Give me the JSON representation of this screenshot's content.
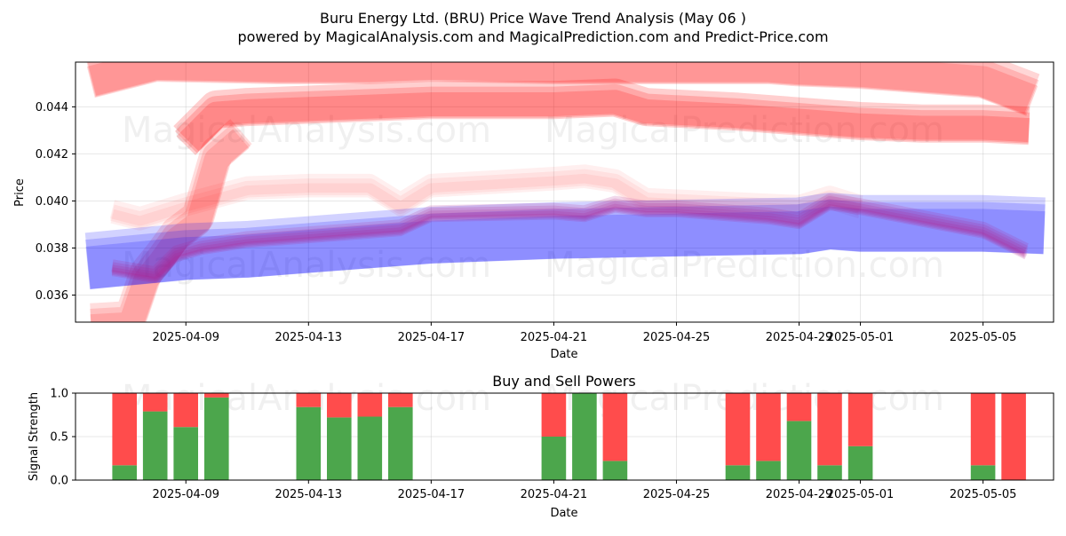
{
  "figure": {
    "title_line1": "Buru Energy Ltd. (BRU) Price Wave Trend Analysis (May 06 )",
    "title_line2": "powered by MagicalAnalysis.com and MagicalPrediction.com and Predict-Price.com"
  },
  "watermarks": {
    "left": "MagicalAnalysis.com",
    "right": "MagicalPrediction.com"
  },
  "colors": {
    "red_band": "#ff0000",
    "blue_band": "#0000ff",
    "buy": "#4ca64c",
    "sell": "#ff4c4c",
    "wave": "#b0208f"
  },
  "chart_data": [
    {
      "type": "area",
      "title": "",
      "xlabel": "Date",
      "ylabel": "Price",
      "xlim_days": [
        -3.6,
        28.3
      ],
      "ylim": [
        0.03485,
        0.0459
      ],
      "x_ticks": [
        {
          "day": 0,
          "label": "2025-04-09"
        },
        {
          "day": 4,
          "label": "2025-04-13"
        },
        {
          "day": 8,
          "label": "2025-04-17"
        },
        {
          "day": 12,
          "label": "2025-04-21"
        },
        {
          "day": 16,
          "label": "2025-04-25"
        },
        {
          "day": 20,
          "label": "2025-04-29"
        },
        {
          "day": 22,
          "label": "2025-05-01"
        },
        {
          "day": 26,
          "label": "2025-05-05"
        }
      ],
      "y_ticks": [
        {
          "value": 0.036,
          "label": "0.036"
        },
        {
          "value": 0.038,
          "label": "0.038"
        },
        {
          "value": 0.04,
          "label": "0.040"
        },
        {
          "value": 0.042,
          "label": "0.042"
        },
        {
          "value": 0.044,
          "label": "0.044"
        }
      ],
      "grid": true,
      "series": [
        {
          "name": "outer-red-upper-band",
          "color": "#ff0000",
          "opacity": 0.3,
          "width": 0.0018,
          "x": [
            -3.1,
            -1,
            3,
            6,
            8,
            12,
            14,
            16,
            19,
            20,
            22,
            24,
            26,
            27.6
          ],
          "y": [
            0.0452,
            0.0459,
            0.0458,
            0.0458,
            0.0459,
            0.0458,
            0.0458,
            0.0458,
            0.0458,
            0.0457,
            0.0456,
            0.0454,
            0.0452,
            0.0444
          ]
        },
        {
          "name": "inner-red-upper-band",
          "color": "#ff0000",
          "opacity": 0.35,
          "width": 0.0015,
          "x": [
            0,
            1,
            2,
            4,
            8,
            12,
            14,
            15,
            18,
            20,
            22,
            24,
            26,
            27.5
          ],
          "y": [
            0.0425,
            0.0438,
            0.0439,
            0.044,
            0.0442,
            0.0442,
            0.0443,
            0.0439,
            0.0437,
            0.0435,
            0.0433,
            0.0432,
            0.0432,
            0.0431
          ]
        },
        {
          "name": "red-spike-curve",
          "color": "#ff0000",
          "opacity": 0.25,
          "width": 0.0014,
          "x": [
            -3.1,
            -1.8,
            -1.3,
            -0.8,
            -0.3,
            0.4,
            1.0,
            1.8
          ],
          "y": [
            0.0348,
            0.0349,
            0.0368,
            0.0376,
            0.0385,
            0.0392,
            0.0419,
            0.0428
          ]
        },
        {
          "name": "pink-upper-band",
          "color": "#ff0000",
          "opacity": 0.12,
          "width": 0.0008,
          "x": [
            -2.4,
            -1.5,
            0,
            2,
            4,
            6,
            7,
            8,
            12,
            13,
            14,
            15,
            20,
            21,
            22
          ],
          "y": [
            0.0395,
            0.0392,
            0.0398,
            0.0405,
            0.0406,
            0.0406,
            0.0398,
            0.0406,
            0.0409,
            0.041,
            0.0408,
            0.04,
            0.0397,
            0.0401,
            0.0397
          ]
        },
        {
          "name": "blue-band",
          "color": "#0000ff",
          "opacity": 0.33,
          "width": 0.0024,
          "x": [
            -3.2,
            0,
            2,
            5,
            8,
            12,
            16,
            20,
            21,
            22,
            23,
            24,
            26,
            28
          ],
          "y": [
            0.0373,
            0.0377,
            0.0378,
            0.0381,
            0.0384,
            0.0386,
            0.0387,
            0.0388,
            0.039,
            0.0389,
            0.0389,
            0.0389,
            0.0389,
            0.0388
          ]
        },
        {
          "name": "price-wave",
          "color": "#b0208f",
          "opacity": 0.55,
          "width": 0.0005,
          "x": [
            -2.4,
            -1,
            -0.3,
            0.5,
            2,
            5,
            7,
            8,
            12,
            13,
            14,
            15,
            16,
            19,
            20,
            21,
            22,
            24,
            26,
            27.4
          ],
          "y": [
            0.0371,
            0.0368,
            0.0377,
            0.038,
            0.0383,
            0.0386,
            0.0388,
            0.0394,
            0.0395,
            0.0394,
            0.0398,
            0.0396,
            0.0396,
            0.0393,
            0.0391,
            0.0399,
            0.0397,
            0.0392,
            0.0387,
            0.0378
          ]
        }
      ]
    },
    {
      "type": "bar",
      "title": "Buy and Sell Powers",
      "xlabel": "Date",
      "ylabel": "Signal Strength",
      "xlim_days": [
        -3.6,
        28.3
      ],
      "ylim": [
        0,
        1
      ],
      "x_ticks": [
        {
          "day": 0,
          "label": "2025-04-09"
        },
        {
          "day": 4,
          "label": "2025-04-13"
        },
        {
          "day": 8,
          "label": "2025-04-17"
        },
        {
          "day": 12,
          "label": "2025-04-21"
        },
        {
          "day": 16,
          "label": "2025-04-25"
        },
        {
          "day": 20,
          "label": "2025-04-29"
        },
        {
          "day": 22,
          "label": "2025-05-01"
        },
        {
          "day": 26,
          "label": "2025-05-05"
        }
      ],
      "y_ticks": [
        {
          "value": 0,
          "label": "0.0"
        },
        {
          "value": 0.5,
          "label": "0.5"
        },
        {
          "value": 1,
          "label": "1.0"
        }
      ],
      "grid": true,
      "bar_width_days": 0.8,
      "categories_day": [
        -2,
        -1,
        0,
        1,
        4,
        5,
        6,
        7,
        12,
        13,
        14,
        18,
        19,
        20,
        21,
        22,
        26,
        27
      ],
      "series": [
        {
          "name": "Buy",
          "color": "#4ca64c",
          "values": [
            0.17,
            0.79,
            0.61,
            0.95,
            0.84,
            0.72,
            0.73,
            0.84,
            0.5,
            1.0,
            0.22,
            0.17,
            0.22,
            0.68,
            0.17,
            0.39,
            0.17,
            0.0
          ]
        },
        {
          "name": "Sell",
          "color": "#ff4c4c",
          "values": [
            0.83,
            0.21,
            0.39,
            0.05,
            0.16,
            0.28,
            0.27,
            0.16,
            0.5,
            0.0,
            0.78,
            0.83,
            0.78,
            0.32,
            0.83,
            0.61,
            0.83,
            1.0
          ]
        }
      ]
    }
  ]
}
